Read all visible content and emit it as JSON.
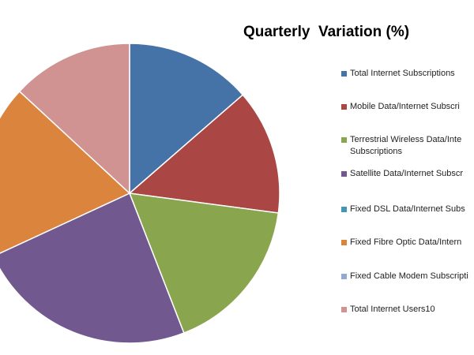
{
  "chart_data": {
    "type": "pie",
    "title": "Quarterly  Variation (%)",
    "categories": [
      "Total Internet Subscriptions",
      "Mobile Data/Internet Subscri",
      "Terrestrial Wireless Data/Inte\nSubscriptions",
      "Satellite Data/Internet Subscr",
      "Fixed DSL Data/Internet Subs",
      "Fixed Fibre Optic Data/Intern",
      "Fixed Cable Modem Subscripti",
      "Total Internet Users10"
    ],
    "values": [
      13.6,
      13.5,
      17,
      24,
      0,
      18.8,
      0,
      13.1
    ],
    "colors": [
      "#4572a7",
      "#aa4643",
      "#89a54e",
      "#71588f",
      "#4198af",
      "#db843d",
      "#93a9cf",
      "#d19392"
    ],
    "legend": "right"
  }
}
